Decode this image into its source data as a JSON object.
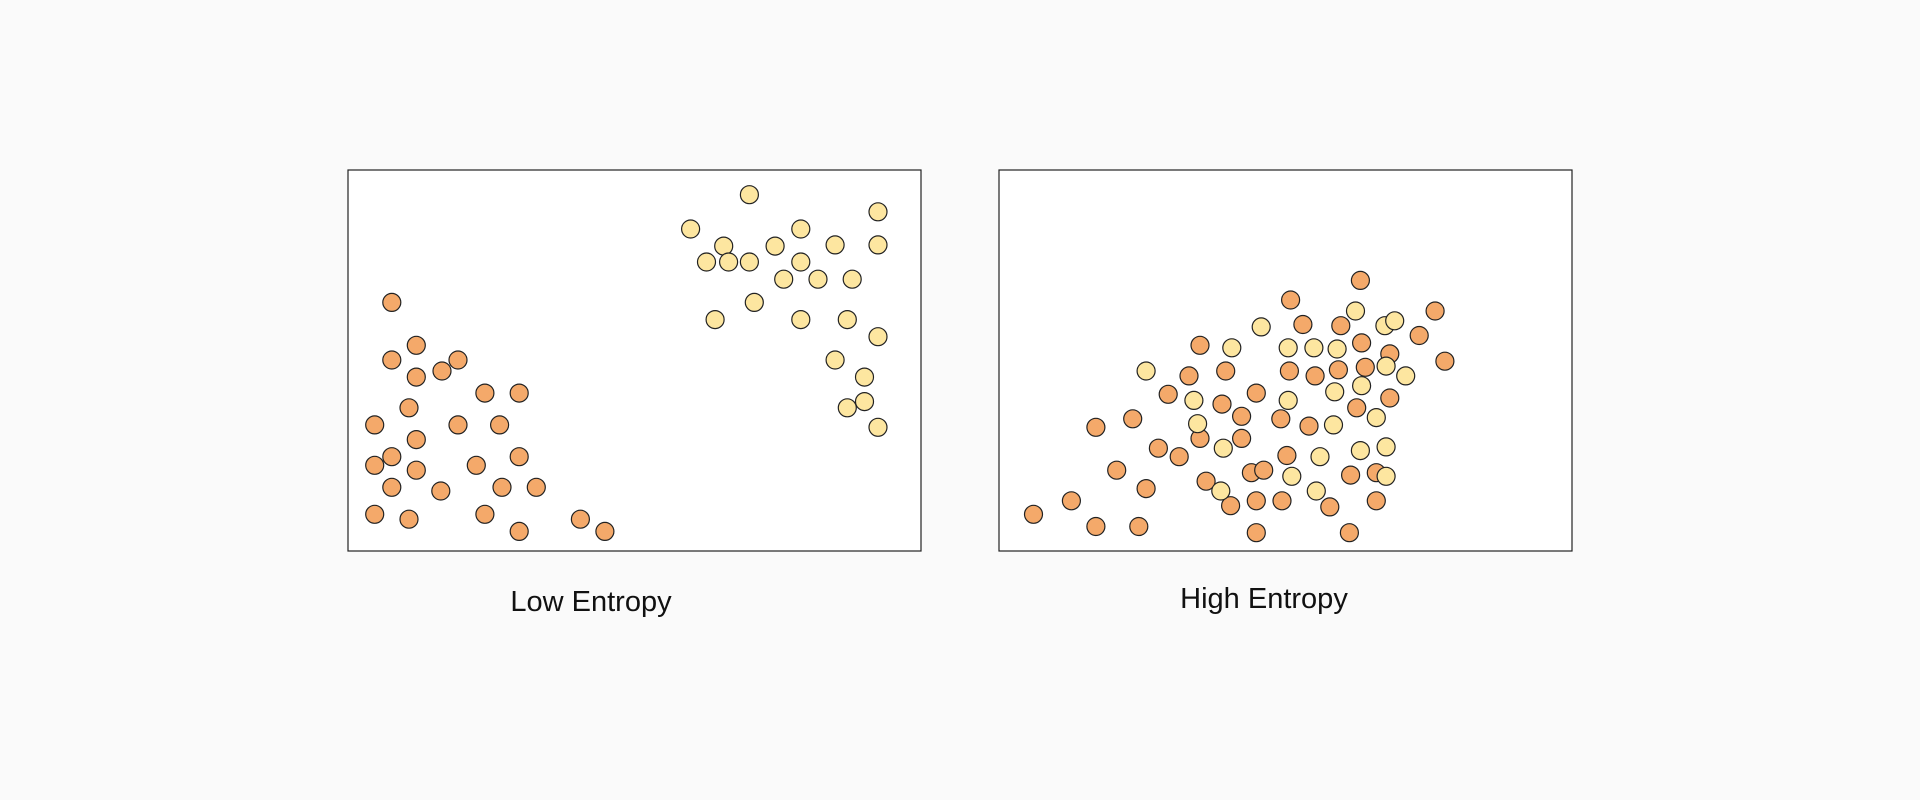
{
  "panels": [
    {
      "caption": "Low Entropy"
    },
    {
      "caption": "High Entropy"
    }
  ]
}
